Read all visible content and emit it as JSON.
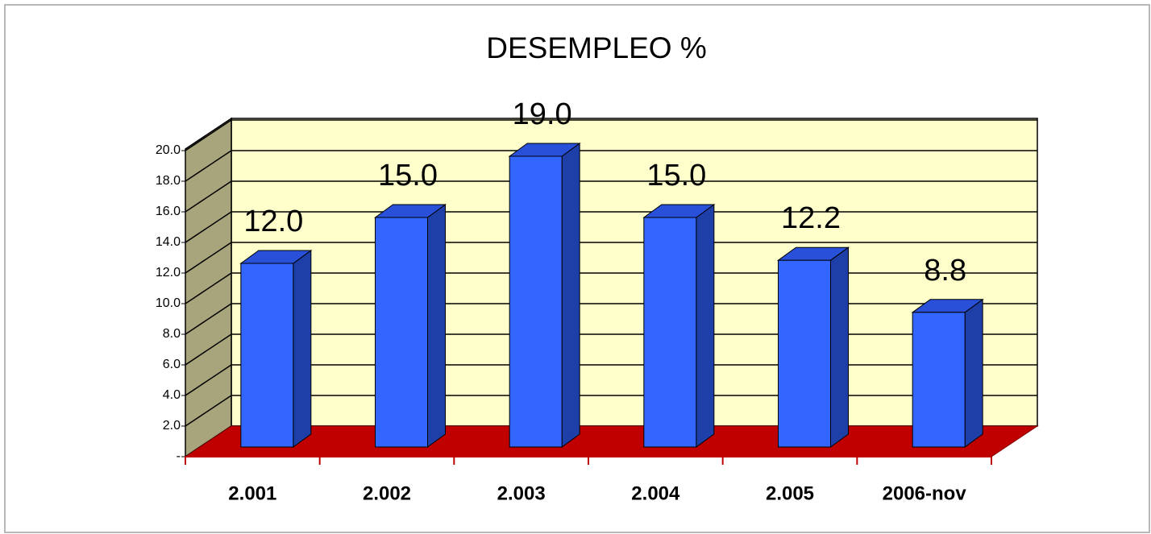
{
  "chart_data": {
    "type": "bar3d",
    "title": "DESEMPLEO %",
    "categories": [
      "2.001",
      "2.002",
      "2.003",
      "2.004",
      "2.005",
      "2006-nov"
    ],
    "values": [
      12.0,
      15.0,
      19.0,
      15.0,
      12.2,
      8.8
    ],
    "value_labels": [
      "12.0",
      "15.0",
      "19.0",
      "15.0",
      "12.2",
      "8.8"
    ],
    "color": "#3366ff",
    "ylim": [
      0,
      20
    ],
    "yticks": [
      {
        "value": 0,
        "label": "-"
      },
      {
        "value": 2,
        "label": "2.0"
      },
      {
        "value": 4,
        "label": "4.0"
      },
      {
        "value": 6,
        "label": "6.0"
      },
      {
        "value": 8,
        "label": "8.0"
      },
      {
        "value": 10,
        "label": "10.0"
      },
      {
        "value": 12,
        "label": "12.0"
      },
      {
        "value": 14,
        "label": "14.0"
      },
      {
        "value": 16,
        "label": "16.0"
      },
      {
        "value": 18,
        "label": "18.0"
      },
      {
        "value": 20,
        "label": "20.0"
      }
    ],
    "grid": true
  }
}
